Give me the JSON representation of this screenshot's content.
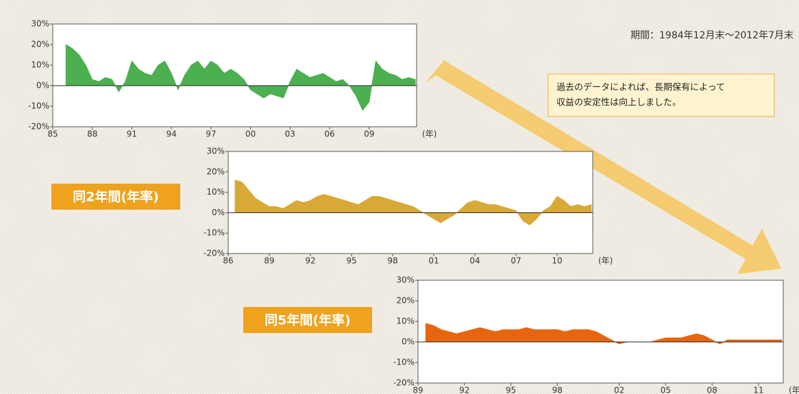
{
  "period": "期間：1984年12月末～2012年7月末",
  "note": [
    "過去のデータによれば、長期保有によって",
    "収益の安定性は向上しました。"
  ],
  "chart_data": [
    {
      "type": "area",
      "xlabel": "(年)",
      "x": [
        1986.0,
        1986.5,
        1987.0,
        1987.5,
        1988.0,
        1988.5,
        1989.0,
        1989.5,
        1990.0,
        1990.5,
        1991.0,
        1991.5,
        1992.0,
        1992.5,
        1993.0,
        1993.5,
        1994.0,
        1994.5,
        1995.0,
        1995.5,
        1996.0,
        1996.5,
        1997.0,
        1997.5,
        1998.0,
        1998.5,
        1999.0,
        1999.5,
        2000.0,
        2000.5,
        2001.0,
        2001.5,
        2002.0,
        2002.5,
        2003.0,
        2003.5,
        2004.0,
        2004.5,
        2005.0,
        2005.5,
        2006.0,
        2006.5,
        2007.0,
        2007.5,
        2008.0,
        2008.5,
        2009.0,
        2009.5,
        2010.0,
        2010.5,
        2011.0,
        2011.5,
        2012.0,
        2012.5
      ],
      "series": [
        {
          "color": "#4caf50",
          "values": [
            20,
            18,
            15,
            10,
            3,
            2,
            4,
            3,
            -3,
            2,
            12,
            8,
            6,
            5,
            10,
            12,
            6,
            -2,
            5,
            10,
            12,
            8,
            12,
            10,
            6,
            8,
            6,
            3,
            -2,
            -4,
            -6,
            -4,
            -5,
            -6,
            2,
            8,
            6,
            4,
            5,
            6,
            4,
            2,
            3,
            0,
            -5,
            -12,
            -8,
            12,
            8,
            6,
            5,
            3,
            4,
            3
          ]
        }
      ],
      "xlim": [
        1985,
        2012.6
      ],
      "xticks": [
        {
          "value": 1985,
          "label": "85"
        },
        {
          "value": 1988,
          "label": "88"
        },
        {
          "value": 1991,
          "label": "91"
        },
        {
          "value": 1994,
          "label": "94"
        },
        {
          "value": 1997,
          "label": "97"
        },
        {
          "value": 2000,
          "label": "00"
        },
        {
          "value": 2003,
          "label": "03"
        },
        {
          "value": 2006,
          "label": "06"
        },
        {
          "value": 2009,
          "label": "09"
        }
      ],
      "ylim": [
        -20,
        30
      ],
      "yticks": [
        {
          "value": 30,
          "label": "30%"
        },
        {
          "value": 20,
          "label": "20%"
        },
        {
          "value": 10,
          "label": "10%"
        },
        {
          "value": 0,
          "label": "0%"
        },
        {
          "value": -10,
          "label": "-10%"
        },
        {
          "value": -20,
          "label": "-20%"
        }
      ]
    },
    {
      "type": "area",
      "title": "同2年間(年率)",
      "xlabel": "(年)",
      "x": [
        1986.5,
        1987.0,
        1987.5,
        1988.0,
        1988.5,
        1989.0,
        1989.5,
        1990.0,
        1990.5,
        1991.0,
        1991.5,
        1992.0,
        1992.5,
        1993.0,
        1993.5,
        1994.0,
        1994.5,
        1995.0,
        1995.5,
        1996.0,
        1996.5,
        1997.0,
        1997.5,
        1998.0,
        1998.5,
        1999.0,
        1999.5,
        2000.0,
        2000.5,
        2001.0,
        2001.5,
        2002.0,
        2002.5,
        2003.0,
        2003.5,
        2004.0,
        2004.5,
        2005.0,
        2005.5,
        2006.0,
        2006.5,
        2007.0,
        2007.5,
        2008.0,
        2008.5,
        2009.0,
        2009.5,
        2010.0,
        2010.5,
        2011.0,
        2011.5,
        2012.0,
        2012.5
      ],
      "series": [
        {
          "color": "#d8a936",
          "values": [
            16,
            15,
            11,
            7,
            5,
            3,
            3,
            2,
            4,
            6,
            5,
            6,
            8,
            9,
            8,
            7,
            6,
            5,
            4,
            6,
            8,
            8,
            7,
            6,
            5,
            4,
            3,
            1,
            -1,
            -3,
            -5,
            -3,
            -1,
            2,
            5,
            6,
            5,
            4,
            4,
            3,
            2,
            1,
            -4,
            -6,
            -3,
            1,
            3,
            8,
            6,
            3,
            4,
            3,
            4
          ]
        }
      ],
      "xlim": [
        1986,
        2012.6
      ],
      "xticks": [
        {
          "value": 1986,
          "label": "86"
        },
        {
          "value": 1989,
          "label": "89"
        },
        {
          "value": 1992,
          "label": "92"
        },
        {
          "value": 1995,
          "label": "95"
        },
        {
          "value": 1998,
          "label": "98"
        },
        {
          "value": 2001,
          "label": "01"
        },
        {
          "value": 2004,
          "label": "04"
        },
        {
          "value": 2007,
          "label": "07"
        },
        {
          "value": 2010,
          "label": "10"
        }
      ],
      "ylim": [
        -20,
        30
      ],
      "yticks": [
        {
          "value": 30,
          "label": "30%"
        },
        {
          "value": 20,
          "label": "20%"
        },
        {
          "value": 10,
          "label": "10%"
        },
        {
          "value": 0,
          "label": "0%"
        },
        {
          "value": -10,
          "label": "-10%"
        },
        {
          "value": -20,
          "label": "-20%"
        }
      ]
    },
    {
      "type": "area",
      "title": "同5年間(年率)",
      "xlabel": "(年)",
      "x": [
        1989.5,
        1990.0,
        1990.5,
        1991.0,
        1991.5,
        1992.0,
        1992.5,
        1993.0,
        1993.5,
        1994.0,
        1994.5,
        1995.0,
        1995.5,
        1996.0,
        1996.5,
        1997.0,
        1997.5,
        1998.0,
        1998.5,
        1999.0,
        1999.5,
        2000.0,
        2000.5,
        2001.0,
        2001.5,
        2002.0,
        2002.5,
        2003.0,
        2003.5,
        2004.0,
        2004.5,
        2005.0,
        2005.5,
        2006.0,
        2006.5,
        2007.0,
        2007.5,
        2008.0,
        2008.5,
        2009.0,
        2009.5,
        2010.0,
        2010.5,
        2011.0,
        2011.5,
        2012.0,
        2012.5
      ],
      "series": [
        {
          "color": "#e8650f",
          "values": [
            9,
            8,
            6,
            5,
            4,
            5,
            6,
            7,
            6,
            5,
            6,
            6,
            6,
            7,
            6,
            6,
            6,
            6,
            5,
            6,
            6,
            6,
            5,
            3,
            1,
            -1,
            0,
            0,
            0,
            0,
            1,
            2,
            2,
            2,
            3,
            4,
            3,
            1,
            -1,
            1,
            1,
            1,
            1,
            1,
            1,
            1,
            1
          ]
        }
      ],
      "xlim": [
        1989,
        2012.6
      ],
      "xticks": [
        {
          "value": 1989,
          "label": "89"
        },
        {
          "value": 1992,
          "label": "92"
        },
        {
          "value": 1995,
          "label": "95"
        },
        {
          "value": 1998,
          "label": "98"
        },
        {
          "value": 2002,
          "label": "02"
        },
        {
          "value": 2005,
          "label": "05"
        },
        {
          "value": 2008,
          "label": "08"
        },
        {
          "value": 2011,
          "label": "11"
        }
      ],
      "ylim": [
        -20,
        30
      ],
      "yticks": [
        {
          "value": 30,
          "label": "30%"
        },
        {
          "value": 20,
          "label": "20%"
        },
        {
          "value": 10,
          "label": "10%"
        },
        {
          "value": 0,
          "label": "0%"
        },
        {
          "value": -10,
          "label": "-10%"
        },
        {
          "value": -20,
          "label": "-20%"
        }
      ]
    }
  ]
}
